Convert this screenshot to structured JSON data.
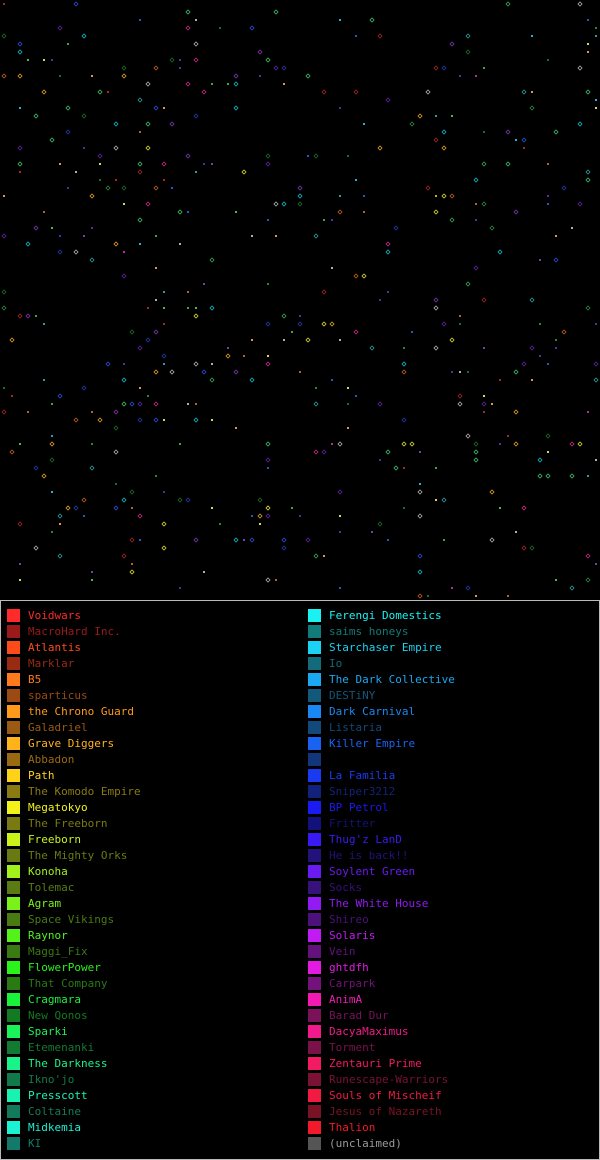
{
  "map": {
    "legend_note": ""
  },
  "legend": {
    "left": [
      {
        "name": "Voidwars",
        "color": "#ff2a2a",
        "active": true
      },
      {
        "name": "MacroHard Inc.",
        "color": "#9a1a1a",
        "active": false
      },
      {
        "name": "Atlantis",
        "color": "#ff4a1a",
        "active": true
      },
      {
        "name": "Marklar",
        "color": "#9a2a12",
        "active": false
      },
      {
        "name": "B5",
        "color": "#ff7a1a",
        "active": true
      },
      {
        "name": "sparticus",
        "color": "#9a4a12",
        "active": false
      },
      {
        "name": "the Chrono Guard",
        "color": "#ff9a1a",
        "active": true
      },
      {
        "name": "Galadriel",
        "color": "#9a5a12",
        "active": false
      },
      {
        "name": "Grave Diggers",
        "color": "#ffb21a",
        "active": true
      },
      {
        "name": "Abbadon",
        "color": "#9a6a12",
        "active": false
      },
      {
        "name": "Path",
        "color": "#ffd21a",
        "active": true
      },
      {
        "name": "The Komodo Empire",
        "color": "#8a7a12",
        "active": false
      },
      {
        "name": "Megatokyo",
        "color": "#f2f21a",
        "active": true
      },
      {
        "name": "The Freeborn",
        "color": "#7a7a12",
        "active": false
      },
      {
        "name": "Freeborn",
        "color": "#c8f21a",
        "active": true
      },
      {
        "name": "The Mighty Orks",
        "color": "#6a7a12",
        "active": false
      },
      {
        "name": "Konoha",
        "color": "#a0f21a",
        "active": true
      },
      {
        "name": "Tolemac",
        "color": "#5a7a12",
        "active": false
      },
      {
        "name": "Agram",
        "color": "#7af21a",
        "active": true
      },
      {
        "name": "Space Vikings",
        "color": "#4a7a12",
        "active": false
      },
      {
        "name": "Raynor",
        "color": "#52f21a",
        "active": true
      },
      {
        "name": "Maggi_Fix",
        "color": "#3a7a12",
        "active": false
      },
      {
        "name": "FlowerPower",
        "color": "#2af21a",
        "active": true
      },
      {
        "name": "That Company",
        "color": "#2a7a12",
        "active": false
      },
      {
        "name": "Cragmara",
        "color": "#1af23a",
        "active": true
      },
      {
        "name": "New Qonos",
        "color": "#127a22",
        "active": false
      },
      {
        "name": "Sparki",
        "color": "#1af25a",
        "active": true
      },
      {
        "name": "Etemenanki",
        "color": "#127a32",
        "active": false
      },
      {
        "name": "The Darkness",
        "color": "#1af28a",
        "active": true
      },
      {
        "name": "Ikno'jo",
        "color": "#127a4a",
        "active": false
      },
      {
        "name": "Presscott",
        "color": "#1af2b2",
        "active": true
      },
      {
        "name": "Coltaine",
        "color": "#127a5a",
        "active": false
      },
      {
        "name": "Midkemia",
        "color": "#1af2d2",
        "active": true
      },
      {
        "name": "KI",
        "color": "#127a6a",
        "active": false
      }
    ],
    "right": [
      {
        "name": "Ferengi Domestics",
        "color": "#1af2f2",
        "active": true
      },
      {
        "name": "saims honeys",
        "color": "#127a7a",
        "active": false
      },
      {
        "name": "Starchaser Empire",
        "color": "#1ad2f2",
        "active": true
      },
      {
        "name": "Io",
        "color": "#126a7a",
        "active": false
      },
      {
        "name": "The Dark Collective",
        "color": "#1aa8f2",
        "active": true
      },
      {
        "name": "DESTiNY",
        "color": "#12587a",
        "active": false
      },
      {
        "name": "Dark Carnival",
        "color": "#1a88f2",
        "active": true
      },
      {
        "name": "Listaria",
        "color": "#12487a",
        "active": false
      },
      {
        "name": "Killer Empire",
        "color": "#1a62f2",
        "active": true
      },
      {
        "name": "",
        "color": "#12367a",
        "active": false
      },
      {
        "name": "La Familia",
        "color": "#1a3af2",
        "active": true
      },
      {
        "name": "Sniper3212",
        "color": "#12227a",
        "active": false
      },
      {
        "name": "BP Petrol",
        "color": "#1a1af2",
        "active": true
      },
      {
        "name": "Fritter",
        "color": "#12127a",
        "active": false
      },
      {
        "name": "Thug'z LanD",
        "color": "#3a1af2",
        "active": true
      },
      {
        "name": "He is back!!",
        "color": "#22127a",
        "active": false
      },
      {
        "name": "Soylent Green",
        "color": "#6a1af2",
        "active": true
      },
      {
        "name": "Socks",
        "color": "#36127a",
        "active": false
      },
      {
        "name": "The White House",
        "color": "#921af2",
        "active": true
      },
      {
        "name": "Shireo",
        "color": "#4a127a",
        "active": false
      },
      {
        "name": "Solaris",
        "color": "#c21af2",
        "active": true
      },
      {
        "name": "Vein",
        "color": "#62127a",
        "active": false
      },
      {
        "name": "ghtdfh",
        "color": "#e21ae2",
        "active": true
      },
      {
        "name": "Carpark",
        "color": "#72127a",
        "active": false
      },
      {
        "name": "AnimA",
        "color": "#f21ab2",
        "active": true
      },
      {
        "name": "Barad Dur",
        "color": "#7a125a",
        "active": false
      },
      {
        "name": "DacyaMaximus",
        "color": "#f21a8a",
        "active": true
      },
      {
        "name": "Torment",
        "color": "#7a124a",
        "active": false
      },
      {
        "name": "Zentauri Prime",
        "color": "#f21a62",
        "active": true
      },
      {
        "name": "Runescape-Warriors",
        "color": "#7a1236",
        "active": false
      },
      {
        "name": "Souls of Mischeif",
        "color": "#f21a42",
        "active": true
      },
      {
        "name": "Jesus of Nazareth",
        "color": "#7a1226",
        "active": false
      },
      {
        "name": "Thalion",
        "color": "#f21a2a",
        "active": true
      },
      {
        "name": "(unclaimed)",
        "color": "#555555",
        "active": false,
        "text_color": "#9a9a9a"
      }
    ]
  }
}
